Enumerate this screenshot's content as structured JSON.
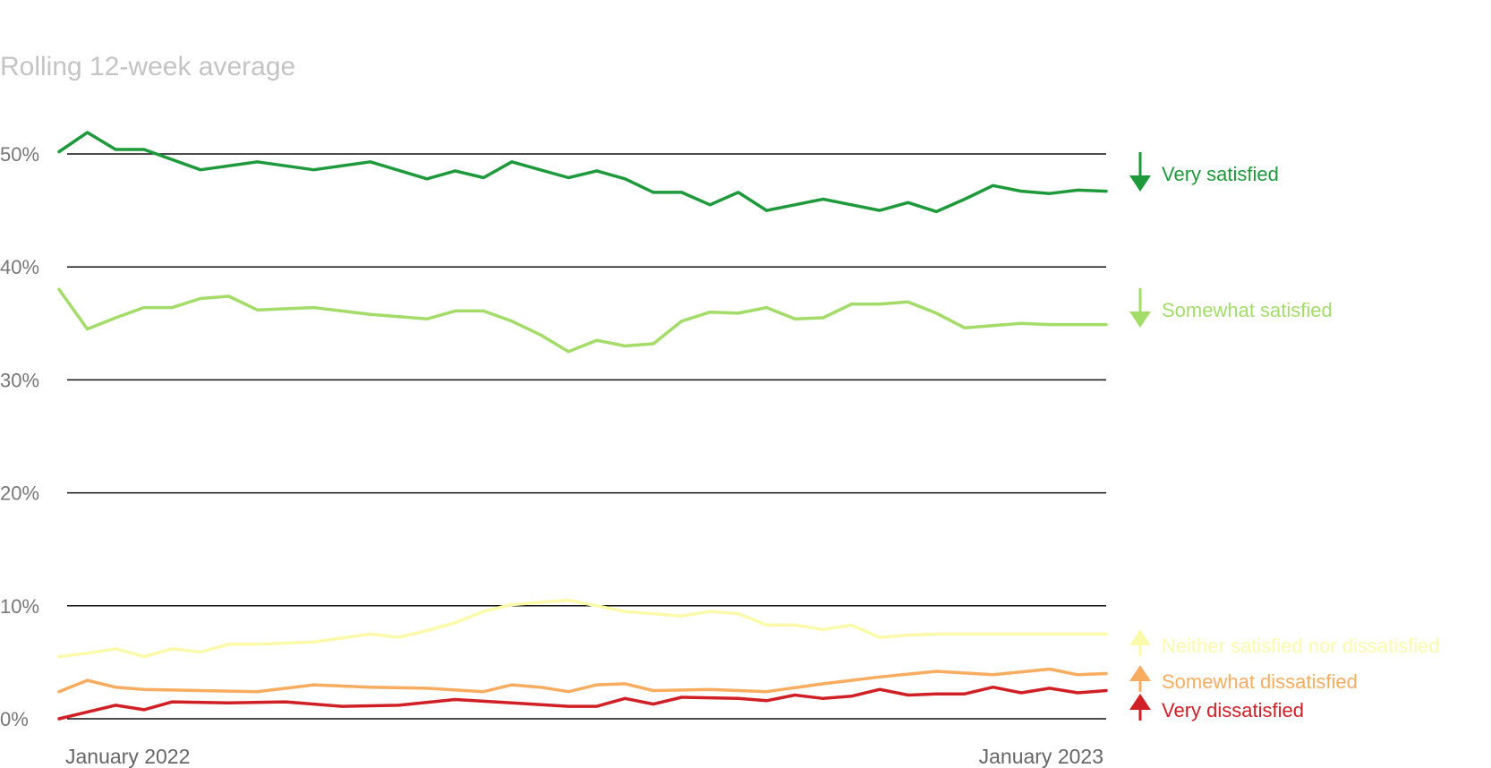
{
  "chart_data": {
    "type": "line",
    "title": "",
    "subtitle": "Rolling 12-week average",
    "xlabel": "",
    "ylabel": "",
    "ylim": [
      0,
      50
    ],
    "yticks": [
      0,
      10,
      20,
      30,
      40,
      50
    ],
    "ytick_labels": [
      "0%",
      "10%",
      "20%",
      "30%",
      "40%",
      "50%"
    ],
    "grid": true,
    "xlim": [
      0,
      37
    ],
    "xticks": [
      {
        "x": 0,
        "label": "January 2022"
      },
      {
        "x": 37,
        "label": "January 2023"
      }
    ],
    "series": [
      {
        "name": "Very satisfied",
        "color": "#1e9a3c",
        "trend": "down",
        "x": [
          0,
          1,
          2,
          3,
          5,
          7,
          9,
          11,
          13,
          14,
          15,
          16,
          17,
          18,
          19,
          20,
          21,
          22,
          23,
          24,
          25,
          26,
          27,
          28,
          29,
          30,
          31,
          32,
          33,
          34,
          35,
          36,
          37
        ],
        "values": [
          50.2,
          51.9,
          50.4,
          50.4,
          48.6,
          49.3,
          48.6,
          49.3,
          47.8,
          48.5,
          47.9,
          49.3,
          48.6,
          47.9,
          48.5,
          47.8,
          46.6,
          46.6,
          45.5,
          46.6,
          45.0,
          45.5,
          46.0,
          45.5,
          45.0,
          45.7,
          44.9,
          46.0,
          47.2,
          46.7,
          46.5,
          46.8,
          46.7
        ]
      },
      {
        "name": "Somewhat satisfied",
        "color": "#a4dc6a",
        "trend": "down",
        "x": [
          0,
          1,
          2,
          3,
          4,
          5,
          6,
          7,
          9,
          11,
          13,
          14,
          15,
          16,
          17,
          18,
          19,
          20,
          21,
          22,
          23,
          24,
          25,
          26,
          27,
          28,
          29,
          30,
          31,
          32,
          33,
          34,
          35,
          36,
          37
        ],
        "values": [
          38.0,
          34.5,
          35.5,
          36.4,
          36.4,
          37.2,
          37.4,
          36.2,
          36.4,
          35.8,
          35.4,
          36.1,
          36.1,
          35.2,
          34.0,
          32.5,
          33.5,
          33.0,
          33.2,
          35.2,
          36.0,
          35.9,
          36.4,
          35.4,
          35.5,
          36.7,
          36.7,
          36.9,
          35.9,
          34.6,
          34.8,
          35.0,
          34.9,
          34.9,
          34.9
        ]
      },
      {
        "name": "Neither satisfied nor dissatisfied",
        "color": "#fbfaaa",
        "trend": "up",
        "x": [
          0,
          1,
          2,
          3,
          4,
          5,
          6,
          7,
          9,
          11,
          12,
          13,
          14,
          15,
          16,
          17,
          18,
          19,
          20,
          21,
          22,
          23,
          24,
          25,
          26,
          27,
          28,
          29,
          30,
          31,
          32,
          33,
          34,
          35,
          36,
          37
        ],
        "values": [
          5.5,
          5.8,
          6.2,
          5.5,
          6.2,
          5.9,
          6.6,
          6.6,
          6.8,
          7.5,
          7.2,
          7.8,
          8.5,
          9.5,
          10.1,
          10.3,
          10.5,
          10.0,
          9.5,
          9.3,
          9.1,
          9.5,
          9.3,
          8.3,
          8.3,
          7.9,
          8.3,
          7.2,
          7.4,
          7.5,
          7.5,
          7.5,
          7.5,
          7.5,
          7.5,
          7.5
        ]
      },
      {
        "name": "Somewhat dissatisfied",
        "color": "#f8ac60",
        "trend": "up",
        "x": [
          0,
          1,
          2,
          3,
          5,
          7,
          9,
          11,
          13,
          15,
          16,
          17,
          18,
          19,
          20,
          21,
          23,
          25,
          27,
          29,
          31,
          33,
          35,
          36,
          37
        ],
        "values": [
          2.4,
          3.4,
          2.8,
          2.6,
          2.5,
          2.4,
          3.0,
          2.8,
          2.7,
          2.4,
          3.0,
          2.8,
          2.4,
          3.0,
          3.1,
          2.5,
          2.6,
          2.4,
          3.1,
          3.7,
          4.2,
          3.9,
          4.4,
          3.9,
          4.0
        ]
      },
      {
        "name": "Very dissatisfied",
        "color": "#d01f25",
        "trend": "up",
        "x": [
          0,
          1,
          2,
          3,
          4,
          6,
          8,
          10,
          12,
          14,
          16,
          18,
          19,
          20,
          21,
          22,
          24,
          25,
          26,
          27,
          28,
          29,
          30,
          31,
          32,
          33,
          34,
          35,
          36,
          37
        ],
        "values": [
          0.0,
          0.6,
          1.2,
          0.8,
          1.5,
          1.4,
          1.5,
          1.1,
          1.2,
          1.7,
          1.4,
          1.1,
          1.1,
          1.8,
          1.3,
          1.9,
          1.8,
          1.6,
          2.1,
          1.8,
          2.0,
          2.6,
          2.1,
          2.2,
          2.2,
          2.8,
          2.3,
          2.7,
          2.3,
          2.5
        ]
      }
    ]
  }
}
